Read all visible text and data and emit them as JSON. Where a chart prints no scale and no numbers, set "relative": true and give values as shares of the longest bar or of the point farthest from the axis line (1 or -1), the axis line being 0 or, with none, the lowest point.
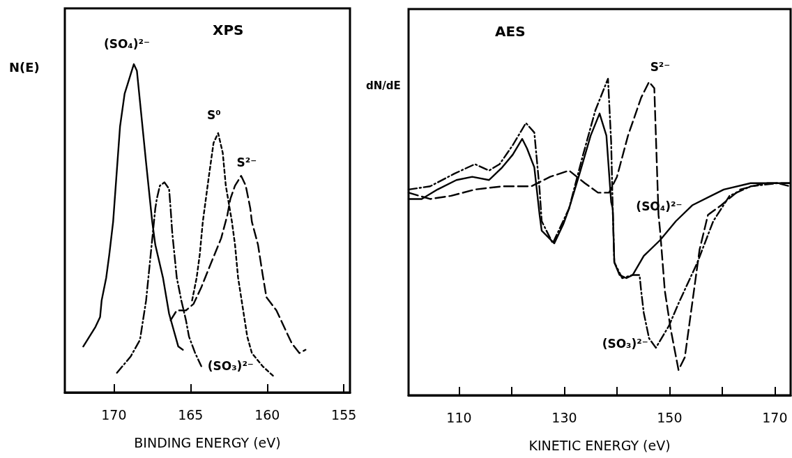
{
  "chart_data": [
    {
      "type": "line",
      "title": "XPS",
      "xlabel": "BINDING ENERGY (eV)",
      "ylabel": "N(E)",
      "relative": true,
      "xlim": [
        173.2,
        154.6
      ],
      "xticks": [
        170,
        165,
        160,
        155
      ],
      "grid": false,
      "legend": false,
      "series": [
        {
          "name": "(SO₄)²⁻",
          "color": "#000000",
          "line_style": "solid",
          "x": [
            172.0,
            171.2,
            170.9,
            170.8,
            170.5,
            170.3,
            170.05,
            169.6,
            169.3,
            169.1,
            168.9,
            168.7,
            168.5,
            168.2,
            167.9,
            167.5,
            167.3,
            166.8,
            166.4,
            166.1,
            165.8,
            165.5
          ],
          "values": [
            0.14,
            0.2,
            0.23,
            0.28,
            0.35,
            0.42,
            0.52,
            0.81,
            0.91,
            0.94,
            0.97,
            1.0,
            0.98,
            0.84,
            0.7,
            0.52,
            0.45,
            0.35,
            0.24,
            0.19,
            0.14,
            0.13
          ]
        },
        {
          "name": "(SO₃)²⁻",
          "color": "#000000",
          "line_style": "dashdot",
          "x": [
            169.8,
            168.9,
            168.3,
            167.9,
            167.6,
            167.3,
            167.2,
            167.0,
            166.7,
            166.4,
            166.3,
            166.2,
            165.9,
            165.6,
            165.3,
            165.1,
            164.7,
            164.3
          ],
          "values": [
            0.06,
            0.11,
            0.16,
            0.28,
            0.42,
            0.56,
            0.59,
            0.63,
            0.64,
            0.62,
            0.56,
            0.49,
            0.35,
            0.28,
            0.22,
            0.17,
            0.12,
            0.08
          ]
        },
        {
          "name": "S⁰",
          "color": "#000000",
          "line_style": "dotted",
          "x": [
            164.9,
            164.6,
            164.4,
            164.2,
            163.8,
            163.5,
            163.2,
            162.9,
            162.7,
            162.3,
            162.1,
            161.9,
            161.6,
            161.3,
            161.0,
            160.3,
            159.6
          ],
          "values": [
            0.28,
            0.35,
            0.42,
            0.52,
            0.66,
            0.76,
            0.79,
            0.73,
            0.63,
            0.52,
            0.45,
            0.35,
            0.26,
            0.17,
            0.12,
            0.08,
            0.05
          ]
        },
        {
          "name": "S²⁻",
          "color": "#000000",
          "line_style": "dashed",
          "x": [
            166.3,
            165.9,
            165.3,
            164.8,
            164.3,
            163.7,
            163.0,
            162.6,
            162.4,
            162.1,
            161.7,
            161.4,
            161.1,
            161.0,
            160.6,
            160.3,
            160.05,
            159.4,
            158.8,
            158.4,
            157.9,
            157.5
          ],
          "values": [
            0.22,
            0.25,
            0.25,
            0.27,
            0.32,
            0.39,
            0.47,
            0.54,
            0.59,
            0.63,
            0.66,
            0.63,
            0.56,
            0.52,
            0.45,
            0.36,
            0.29,
            0.25,
            0.19,
            0.15,
            0.12,
            0.13
          ]
        }
      ]
    },
    {
      "type": "line",
      "title": "AES",
      "xlabel": "KINETIC ENERGY (eV)",
      "ylabel": "dN/dE",
      "relative": true,
      "xlim": [
        100.4,
        173
      ],
      "xticks": [
        110,
        {
          "value": 120,
          "label": null
        },
        130,
        {
          "value": 140,
          "label": null
        },
        150,
        {
          "value": 160,
          "label": null
        },
        170
      ],
      "grid": false,
      "legend": false,
      "series": [
        {
          "name": "(SO₄)²⁻",
          "color": "#000000",
          "line_style": "solid",
          "x": [
            100.4,
            102.9,
            105.9,
            109.5,
            112.5,
            115.7,
            118.2,
            120.2,
            122.0,
            122.9,
            124.3,
            125.3,
            125.7,
            128.1,
            129.8,
            130.9,
            132.9,
            135.0,
            136.7,
            138.0,
            138.9,
            139.2,
            139.5,
            140.5,
            141.8,
            143.0,
            145.1,
            148.2,
            151.2,
            154.3,
            160.3,
            165.4,
            169.4,
            172.9
          ],
          "values": [
            0.62,
            0.62,
            0.65,
            0.68,
            0.69,
            0.68,
            0.72,
            0.76,
            0.81,
            0.78,
            0.72,
            0.57,
            0.52,
            0.48,
            0.54,
            0.59,
            0.7,
            0.82,
            0.89,
            0.82,
            0.61,
            0.59,
            0.42,
            0.38,
            0.37,
            0.38,
            0.44,
            0.49,
            0.55,
            0.6,
            0.65,
            0.67,
            0.67,
            0.67
          ]
        },
        {
          "name": "(SO₃)²⁻",
          "color": "#000000",
          "line_style": "dashdot",
          "x": [
            100.4,
            104.5,
            109.1,
            113.0,
            115.7,
            117.7,
            120.2,
            122.7,
            124.3,
            125.3,
            125.7,
            127.8,
            130.9,
            133.4,
            135.9,
            138.3,
            138.9,
            139.2,
            139.5,
            141.0,
            143.0,
            144.3,
            144.6,
            145.1,
            146.1,
            147.4,
            149.9,
            151.7,
            155.3,
            158.3,
            161.4,
            165.4,
            170.5,
            172.9
          ],
          "values": [
            0.65,
            0.66,
            0.7,
            0.73,
            0.71,
            0.73,
            0.79,
            0.86,
            0.83,
            0.65,
            0.55,
            0.48,
            0.59,
            0.75,
            0.9,
            1.0,
            0.8,
            0.59,
            0.42,
            0.37,
            0.38,
            0.38,
            0.33,
            0.26,
            0.18,
            0.15,
            0.22,
            0.29,
            0.42,
            0.55,
            0.63,
            0.66,
            0.67,
            0.66
          ]
        },
        {
          "name": "S²⁻",
          "color": "#000000",
          "line_style": "dashed",
          "x": [
            100.4,
            104.5,
            108.5,
            113.0,
            118.2,
            123.7,
            127.3,
            130.9,
            133.9,
            136.4,
            138.5,
            140.0,
            142.1,
            144.6,
            146.1,
            147.1,
            147.4,
            147.9,
            148.2,
            149.1,
            150.2,
            151.7,
            152.9,
            154.3,
            155.7,
            157.3,
            159.8,
            163.4,
            168.0,
            172.9
          ],
          "values": [
            0.64,
            0.62,
            0.63,
            0.65,
            0.66,
            0.66,
            0.69,
            0.71,
            0.67,
            0.64,
            0.64,
            0.69,
            0.82,
            0.94,
            0.99,
            0.97,
            0.82,
            0.57,
            0.52,
            0.33,
            0.21,
            0.08,
            0.12,
            0.29,
            0.46,
            0.57,
            0.6,
            0.65,
            0.67,
            0.67
          ]
        }
      ]
    }
  ]
}
